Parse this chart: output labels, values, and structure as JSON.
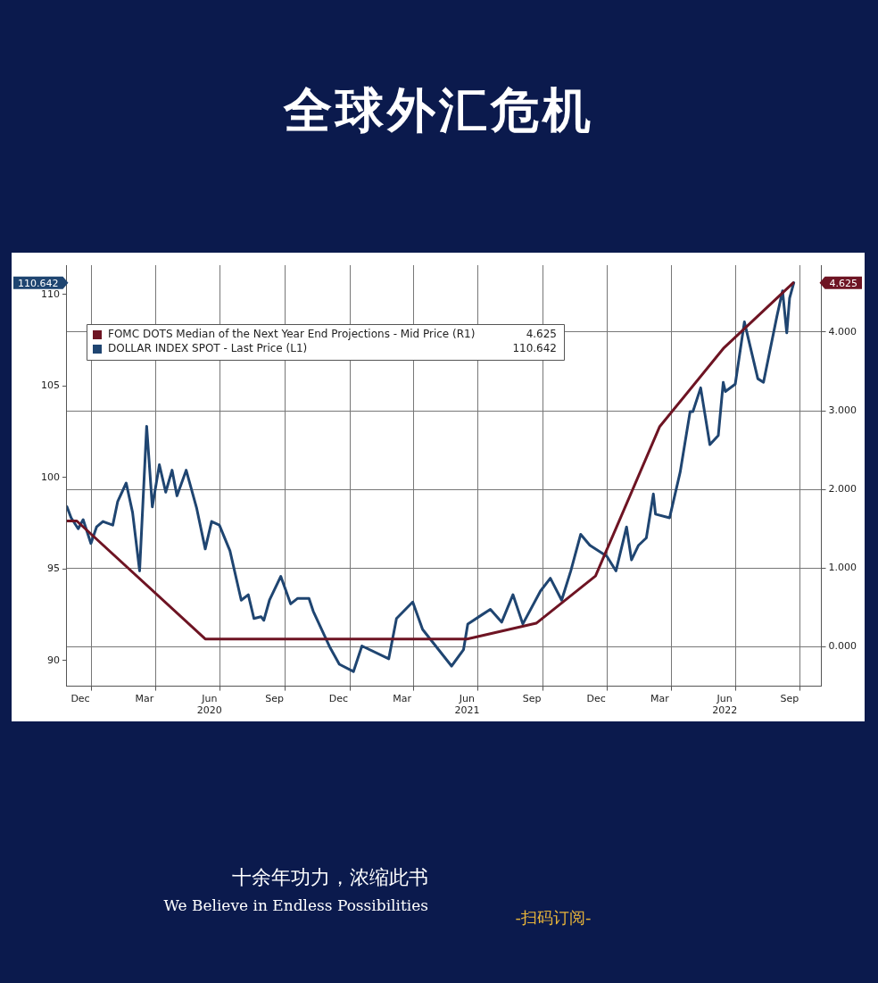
{
  "chart_data": {
    "type": "line",
    "title": "全球外汇危机",
    "xlim": [
      "2019-11-27",
      "2022-10-31"
    ],
    "xticks": [
      {
        "value": "2020-01-01",
        "label": null
      },
      {
        "value": "2020-04-01",
        "label": null
      },
      {
        "value": "2020-07-01",
        "label": null
      },
      {
        "value": "2020-10-01",
        "label": null
      },
      {
        "value": "2021-01-01",
        "label": null
      },
      {
        "value": "2021-04-01",
        "label": null
      },
      {
        "value": "2021-07-01",
        "label": null
      },
      {
        "value": "2021-10-01",
        "label": null
      },
      {
        "value": "2022-01-01",
        "label": null
      },
      {
        "value": "2022-04-01",
        "label": null
      },
      {
        "value": "2022-07-01",
        "label": null
      },
      {
        "value": "2022-10-01",
        "label": null
      },
      {
        "value": "2019-12-16",
        "label": "Dec"
      },
      {
        "value": "2020-03-16",
        "label": "Mar"
      },
      {
        "value": "2020-06-16",
        "label": "Jun\n2020"
      },
      {
        "value": "2020-09-16",
        "label": "Sep"
      },
      {
        "value": "2020-12-16",
        "label": "Dec"
      },
      {
        "value": "2021-03-16",
        "label": "Mar"
      },
      {
        "value": "2021-06-16",
        "label": "Jun\n2021"
      },
      {
        "value": "2021-09-16",
        "label": "Sep"
      },
      {
        "value": "2021-12-16",
        "label": "Dec"
      },
      {
        "value": "2022-03-16",
        "label": "Mar"
      },
      {
        "value": "2022-06-16",
        "label": "Jun\n2022"
      },
      {
        "value": "2022-09-16",
        "label": "Sep"
      }
    ],
    "ylim": [
      88.6,
      111.6
    ],
    "yticks": [
      90,
      95,
      100,
      105,
      110
    ],
    "y2lim": [
      -0.5,
      4.85
    ],
    "y2ticks": [
      {
        "value": 0,
        "label": "0.000"
      },
      {
        "value": 1,
        "label": "1.000"
      },
      {
        "value": 2,
        "label": "2.000"
      },
      {
        "value": 3,
        "label": "3.000"
      },
      {
        "value": 4,
        "label": "4.000"
      }
    ],
    "grid": true,
    "legend": "top left",
    "marker": "none",
    "line_style": "solid",
    "annotations": [
      "4.625",
      "110.642",
      "十余年功力，浓缩此书",
      "We Believe in Endless Possibilities",
      "-扫码订阅-"
    ],
    "series": [
      {
        "name": "FOMC DOTS Median of the Next Year End Projections - Mid Price (R1)",
        "color": "#6e1423",
        "axis": "y2",
        "x": [
          "2019-11-27",
          "2019-12-11",
          "2020-06-10",
          "2021-06-16",
          "2021-09-22",
          "2021-12-15",
          "2022-03-16",
          "2022-06-15",
          "2022-09-21"
        ],
        "values": [
          1.6,
          1.6,
          0.1,
          0.1,
          0.3,
          0.9,
          2.8,
          3.8,
          4.625
        ]
      },
      {
        "name": "DOLLAR INDEX SPOT - Last Price (L1)",
        "color": "#1f4571",
        "axis": "y",
        "x": [
          "2019-11-27",
          "2019-12-03",
          "2019-12-13",
          "2019-12-20",
          "2019-12-31",
          "2020-01-08",
          "2020-01-17",
          "2020-01-31",
          "2020-02-07",
          "2020-02-19",
          "2020-02-28",
          "2020-03-09",
          "2020-03-19",
          "2020-03-27",
          "2020-04-06",
          "2020-04-15",
          "2020-04-24",
          "2020-05-01",
          "2020-05-14",
          "2020-05-29",
          "2020-06-10",
          "2020-06-19",
          "2020-06-30",
          "2020-07-15",
          "2020-07-31",
          "2020-08-10",
          "2020-08-18",
          "2020-08-28",
          "2020-09-01",
          "2020-09-09",
          "2020-09-25",
          "2020-10-09",
          "2020-10-19",
          "2020-11-04",
          "2020-11-10",
          "2020-12-04",
          "2020-12-17",
          "2021-01-06",
          "2021-01-18",
          "2021-02-25",
          "2021-03-08",
          "2021-03-31",
          "2021-04-14",
          "2021-05-25",
          "2021-06-11",
          "2021-06-17",
          "2021-07-07",
          "2021-07-19",
          "2021-08-04",
          "2021-08-20",
          "2021-09-03",
          "2021-09-28",
          "2021-10-12",
          "2021-10-28",
          "2021-11-10",
          "2021-11-24",
          "2021-12-07",
          "2021-12-31",
          "2022-01-13",
          "2022-01-28",
          "2022-02-04",
          "2022-02-14",
          "2022-02-25",
          "2022-03-07",
          "2022-03-10",
          "2022-03-30",
          "2022-04-14",
          "2022-04-28",
          "2022-05-02",
          "2022-05-13",
          "2022-05-26",
          "2022-06-07",
          "2022-06-14",
          "2022-06-17",
          "2022-07-01",
          "2022-07-14",
          "2022-08-02",
          "2022-08-10",
          "2022-08-29",
          "2022-09-06",
          "2022-09-12",
          "2022-09-16",
          "2022-09-22"
        ],
        "values": [
          98.4,
          97.8,
          97.2,
          97.7,
          96.4,
          97.3,
          97.6,
          97.4,
          98.7,
          99.7,
          98.1,
          94.9,
          102.8,
          98.4,
          100.7,
          99.2,
          100.4,
          99.0,
          100.4,
          98.3,
          96.1,
          97.6,
          97.4,
          96.0,
          93.3,
          93.6,
          92.3,
          92.4,
          92.2,
          93.3,
          94.6,
          93.1,
          93.4,
          93.4,
          92.7,
          90.7,
          89.8,
          89.4,
          90.8,
          90.1,
          92.3,
          93.2,
          91.7,
          89.7,
          90.6,
          92.0,
          92.5,
          92.8,
          92.1,
          93.6,
          92.0,
          93.8,
          94.5,
          93.3,
          94.9,
          96.9,
          96.3,
          95.7,
          94.9,
          97.3,
          95.5,
          96.3,
          96.7,
          99.1,
          98.0,
          97.8,
          100.3,
          103.6,
          103.6,
          104.9,
          101.8,
          102.3,
          105.2,
          104.7,
          105.1,
          108.5,
          105.4,
          105.2,
          108.8,
          110.2,
          107.9,
          109.8,
          110.642
        ]
      }
    ]
  }
}
